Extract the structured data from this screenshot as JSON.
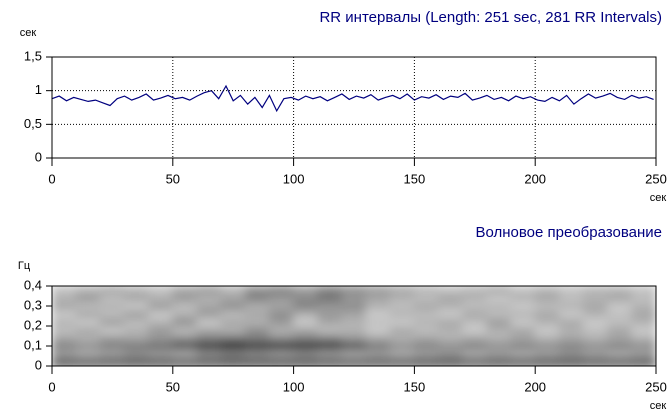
{
  "chart_data": [
    {
      "type": "line",
      "title": "RR интервалы (Length: 251 sec, 281 RR Intervals)",
      "ylabel": "сек",
      "xlabel": "сек",
      "xlim": [
        0,
        250
      ],
      "xticks": [
        0,
        50,
        100,
        150,
        200,
        250
      ],
      "ylim": [
        0,
        1.5
      ],
      "yticks": [
        0,
        {
          "value": 0.5,
          "label": "0,5"
        },
        1,
        {
          "value": 1.5,
          "label": "1,5"
        }
      ],
      "grid": true,
      "x": [
        0,
        3,
        6,
        9,
        12,
        15,
        18,
        21,
        24,
        27,
        30,
        33,
        36,
        39,
        42,
        45,
        48,
        51,
        54,
        57,
        60,
        63,
        66,
        69,
        72,
        75,
        78,
        81,
        84,
        87,
        90,
        93,
        96,
        99,
        102,
        105,
        108,
        111,
        114,
        117,
        120,
        123,
        126,
        129,
        132,
        135,
        138,
        141,
        144,
        147,
        150,
        153,
        156,
        159,
        162,
        165,
        168,
        171,
        174,
        177,
        180,
        183,
        186,
        189,
        192,
        195,
        198,
        201,
        204,
        207,
        210,
        213,
        216,
        219,
        222,
        225,
        228,
        231,
        234,
        237,
        240,
        243,
        246,
        249
      ],
      "series": [
        {
          "color": "#00007f",
          "values": [
            0.88,
            0.92,
            0.85,
            0.9,
            0.87,
            0.84,
            0.86,
            0.82,
            0.78,
            0.88,
            0.92,
            0.86,
            0.9,
            0.95,
            0.86,
            0.89,
            0.93,
            0.88,
            0.9,
            0.86,
            0.92,
            0.97,
            1.0,
            0.88,
            1.07,
            0.85,
            0.93,
            0.8,
            0.9,
            0.75,
            0.93,
            0.7,
            0.88,
            0.9,
            0.86,
            0.92,
            0.88,
            0.91,
            0.85,
            0.9,
            0.95,
            0.87,
            0.92,
            0.89,
            0.94,
            0.86,
            0.9,
            0.93,
            0.88,
            0.95,
            0.86,
            0.91,
            0.89,
            0.94,
            0.87,
            0.92,
            0.9,
            0.96,
            0.86,
            0.89,
            0.93,
            0.87,
            0.9,
            0.85,
            0.92,
            0.88,
            0.91,
            0.86,
            0.84,
            0.9,
            0.85,
            0.93,
            0.8,
            0.88,
            0.95,
            0.89,
            0.92,
            0.96,
            0.9,
            0.87,
            0.93,
            0.89,
            0.91,
            0.87
          ]
        }
      ]
    },
    {
      "type": "heatmap",
      "title": "Волновое преобразование",
      "ylabel": "Гц",
      "xlabel": "сек",
      "xlim": [
        0,
        250
      ],
      "xticks": [
        0,
        50,
        100,
        150,
        200,
        250
      ],
      "ylim": [
        0,
        0.4
      ],
      "yticks": [
        0,
        {
          "value": 0.1,
          "label": "0,1"
        },
        {
          "value": 0.2,
          "label": "0,2"
        },
        {
          "value": 0.3,
          "label": "0,3"
        },
        {
          "value": 0.4,
          "label": "0,4"
        }
      ],
      "grid": false,
      "xbins": [
        0,
        10,
        20,
        30,
        40,
        50,
        60,
        70,
        80,
        90,
        100,
        110,
        120,
        130,
        140,
        150,
        160,
        170,
        180,
        190,
        200,
        210,
        220,
        230,
        240,
        250
      ],
      "ybins": [
        0,
        0.04,
        0.08,
        0.12,
        0.16,
        0.2,
        0.24,
        0.28,
        0.32,
        0.36,
        0.4
      ],
      "z": [
        [
          0.8,
          0.8,
          0.78,
          0.8,
          0.82,
          0.8,
          0.78,
          0.8,
          0.82,
          0.85,
          0.82,
          0.8,
          0.8,
          0.78,
          0.8,
          0.82,
          0.8,
          0.78,
          0.8,
          0.8,
          0.82,
          0.8,
          0.78,
          0.8,
          0.8
        ],
        [
          0.35,
          0.3,
          0.35,
          0.4,
          0.35,
          0.3,
          0.4,
          0.45,
          0.4,
          0.35,
          0.4,
          0.35,
          0.3,
          0.35,
          0.3,
          0.35,
          0.4,
          0.3,
          0.35,
          0.3,
          0.35,
          0.4,
          0.35,
          0.3,
          0.35
        ],
        [
          0.5,
          0.45,
          0.5,
          0.55,
          0.6,
          0.7,
          0.85,
          0.95,
          0.9,
          0.95,
          0.9,
          0.85,
          0.75,
          0.55,
          0.45,
          0.5,
          0.45,
          0.5,
          0.45,
          0.5,
          0.45,
          0.5,
          0.45,
          0.5,
          0.45
        ],
        [
          0.35,
          0.3,
          0.4,
          0.35,
          0.4,
          0.45,
          0.5,
          0.55,
          0.5,
          0.45,
          0.5,
          0.5,
          0.4,
          0.35,
          0.3,
          0.35,
          0.3,
          0.35,
          0.3,
          0.35,
          0.3,
          0.35,
          0.3,
          0.35,
          0.3
        ],
        [
          0.25,
          0.35,
          0.2,
          0.3,
          0.4,
          0.25,
          0.35,
          0.3,
          0.45,
          0.3,
          0.35,
          0.25,
          0.3,
          0.2,
          0.35,
          0.25,
          0.3,
          0.2,
          0.3,
          0.35,
          0.2,
          0.3,
          0.25,
          0.35,
          0.2
        ],
        [
          0.3,
          0.2,
          0.4,
          0.25,
          0.3,
          0.45,
          0.2,
          0.35,
          0.3,
          0.4,
          0.2,
          0.35,
          0.3,
          0.25,
          0.2,
          0.3,
          0.35,
          0.25,
          0.4,
          0.2,
          0.3,
          0.35,
          0.2,
          0.25,
          0.3
        ],
        [
          0.2,
          0.35,
          0.25,
          0.4,
          0.2,
          0.3,
          0.4,
          0.25,
          0.35,
          0.45,
          0.3,
          0.4,
          0.35,
          0.2,
          0.3,
          0.25,
          0.2,
          0.35,
          0.25,
          0.3,
          0.35,
          0.2,
          0.3,
          0.25,
          0.35
        ],
        [
          0.35,
          0.25,
          0.3,
          0.2,
          0.4,
          0.25,
          0.35,
          0.45,
          0.3,
          0.35,
          0.5,
          0.4,
          0.45,
          0.3,
          0.25,
          0.35,
          0.3,
          0.25,
          0.3,
          0.2,
          0.25,
          0.3,
          0.35,
          0.2,
          0.3
        ],
        [
          0.3,
          0.4,
          0.25,
          0.35,
          0.3,
          0.4,
          0.3,
          0.35,
          0.5,
          0.4,
          0.45,
          0.55,
          0.4,
          0.35,
          0.3,
          0.25,
          0.35,
          0.3,
          0.2,
          0.3,
          0.35,
          0.25,
          0.3,
          0.35,
          0.25
        ],
        [
          0.25,
          0.3,
          0.35,
          0.3,
          0.25,
          0.35,
          0.4,
          0.3,
          0.45,
          0.5,
          0.4,
          0.5,
          0.45,
          0.4,
          0.35,
          0.3,
          0.25,
          0.3,
          0.35,
          0.25,
          0.3,
          0.25,
          0.3,
          0.3,
          0.25
        ]
      ]
    }
  ]
}
